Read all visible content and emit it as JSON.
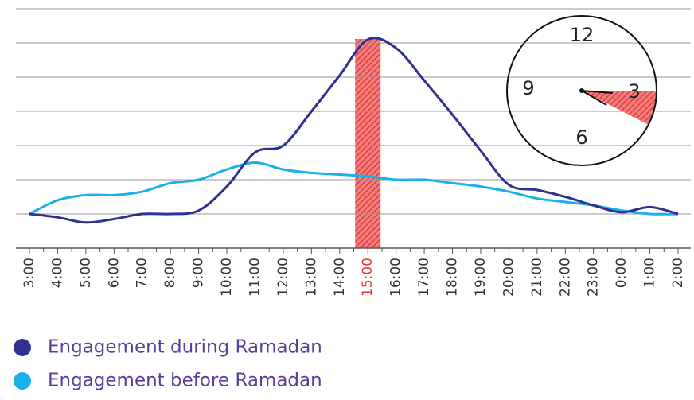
{
  "chart_data": {
    "type": "line",
    "categories": [
      "3:00",
      "4:00",
      "5:00",
      "6:00",
      "7:00",
      "8:00",
      "9:00",
      "10:00",
      "11:00",
      "12:00",
      "13:00",
      "14:00",
      "15:00",
      "16:00",
      "17:00",
      "18:00",
      "19:00",
      "20:00",
      "21:00",
      "22:00",
      "23:00",
      "0:00",
      "1:00",
      "2:00"
    ],
    "series": [
      {
        "name": "Engagement during Ramadan",
        "color": "#2e3192",
        "values": [
          0,
          -0.1,
          -0.25,
          -0.15,
          0,
          0,
          0.1,
          0.8,
          1.8,
          2.0,
          3.0,
          4.05,
          5.1,
          4.85,
          3.9,
          2.9,
          1.85,
          0.85,
          0.7,
          0.5,
          0.25,
          0.05,
          0.2,
          0
        ]
      },
      {
        "name": "Engagement before Ramadan",
        "color": "#1ab0e8",
        "values": [
          0,
          0.4,
          0.55,
          0.55,
          0.65,
          0.9,
          1.0,
          1.3,
          1.5,
          1.3,
          1.2,
          1.15,
          1.1,
          1.0,
          1.0,
          0.9,
          0.8,
          0.65,
          0.45,
          0.35,
          0.25,
          0.1,
          0,
          0
        ]
      }
    ],
    "ylim": [
      -1,
      6
    ],
    "yticks": [
      -1,
      0,
      1,
      2,
      3,
      4,
      5,
      6
    ],
    "grid": true,
    "highlight": {
      "category": 12,
      "color": "#e53935"
    },
    "legend": "bottom-left"
  },
  "clock": {
    "labels": [
      "12",
      "3",
      "6",
      "9"
    ]
  }
}
